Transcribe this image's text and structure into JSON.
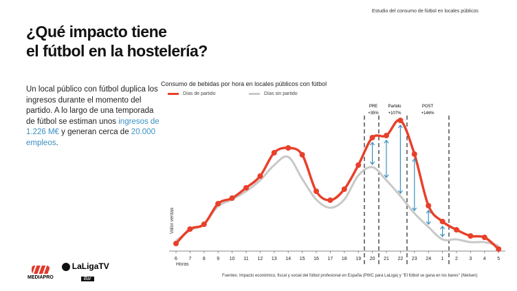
{
  "header": {
    "top_note": "Estudio del consumo de fútbol en locales públicos",
    "title_line1": "¿Qué impacto tiene",
    "title_line2": "el fútbol en la hostelería?"
  },
  "description": {
    "text1": "Un local público con fútbol duplica los ingresos durante el momento del partido. A lo largo de una temporada de fútbol se estiman unos ",
    "highlight1": "ingresos de 1.226 M€",
    "text2": " y generan cerca de ",
    "highlight2": "20.000 empleos",
    "text3": "."
  },
  "logos": {
    "mediapro": "MEDIAPRO",
    "laliga": "LaLigaTV",
    "bar": "Bar"
  },
  "source": "Fuentes: Impacto económico, fiscal y social del fútbol profesional en España (PWC para LaLiga) y \"El fútbol se gana en los bares\" (Nielsen)",
  "chart_data": {
    "type": "line",
    "title": "Consumo de bebidas por hora en locales públicos con fútbol",
    "xlabel": "Horas",
    "ylabel": "Valor ventas",
    "categories": [
      "6",
      "7",
      "8",
      "9",
      "10",
      "11",
      "12",
      "13",
      "14",
      "15",
      "16",
      "17",
      "18",
      "19",
      "20",
      "21",
      "22",
      "23",
      "24",
      "1",
      "2",
      "3",
      "4",
      "5"
    ],
    "series": [
      {
        "name": "Días de partido",
        "color": "#e8402a",
        "values": [
          11,
          32,
          39,
          69,
          77,
          92,
          109,
          143,
          150,
          140,
          87,
          74,
          90,
          125,
          165,
          168,
          190,
          141,
          66,
          43,
          31,
          22,
          20,
          3
        ]
      },
      {
        "name": "Días sin partido",
        "color": "#c8c8c8",
        "values": [
          15,
          30,
          40,
          65,
          75,
          87,
          103,
          125,
          137,
          105,
          75,
          63,
          75,
          110,
          122,
          103,
          80,
          55,
          35,
          17,
          17,
          13,
          13,
          8
        ]
      }
    ],
    "phases": [
      {
        "label": "PRE",
        "change": "+35%"
      },
      {
        "label": "Partido",
        "change": "+107%"
      },
      {
        "label": "POST",
        "change": "+146%"
      }
    ]
  }
}
